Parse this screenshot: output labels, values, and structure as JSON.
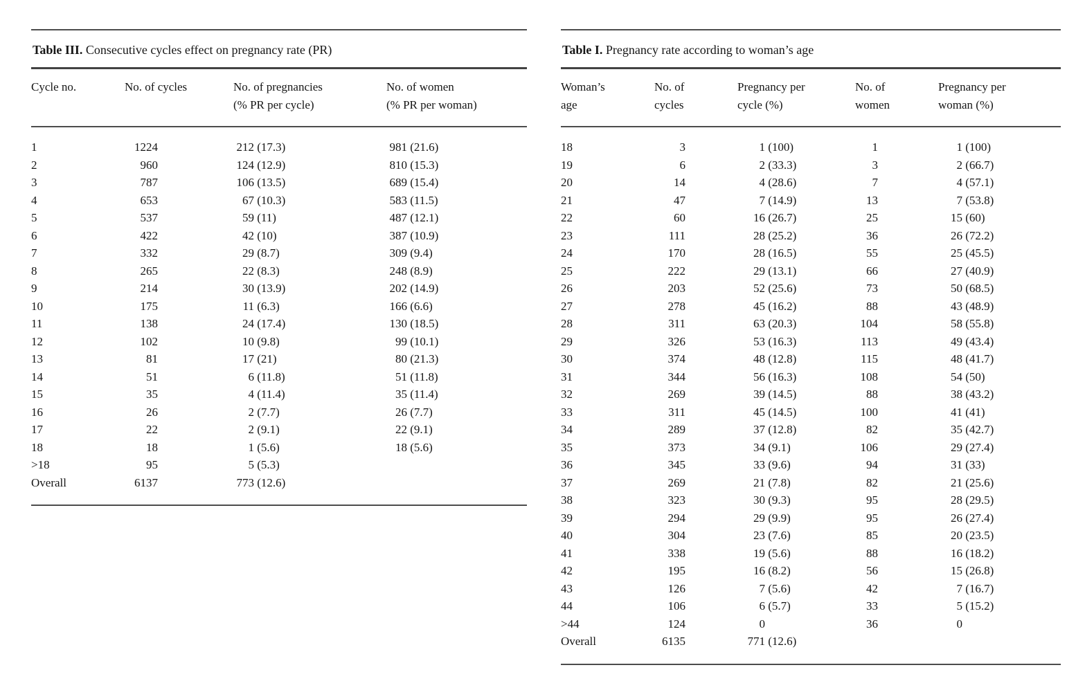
{
  "page": {
    "background": "#ffffff",
    "text_color": "#161616",
    "rule_color": "#4c4c4c"
  },
  "tables": [
    {
      "id": "table-iii",
      "title_label": "Table III.",
      "title_text": "Consecutive cycles effect on pregnancy rate (PR)",
      "columns": [
        {
          "lines": [
            "Cycle no."
          ]
        },
        {
          "lines": [
            "No. of cycles"
          ]
        },
        {
          "lines": [
            "No. of pregnancies",
            "(% PR per cycle)"
          ]
        },
        {
          "lines": [
            "No. of women",
            "(% PR per woman)"
          ]
        }
      ],
      "rows": [
        [
          "1",
          "1224",
          "212 (17.3)",
          "981 (21.6)"
        ],
        [
          "2",
          "960",
          "124 (12.9)",
          "810 (15.3)"
        ],
        [
          "3",
          "787",
          "106 (13.5)",
          "689 (15.4)"
        ],
        [
          "4",
          "653",
          "67 (10.3)",
          "583 (11.5)"
        ],
        [
          "5",
          "537",
          "59 (11)",
          "487 (12.1)"
        ],
        [
          "6",
          "422",
          "42 (10)",
          "387 (10.9)"
        ],
        [
          "7",
          "332",
          "29 (8.7)",
          "309 (9.4)"
        ],
        [
          "8",
          "265",
          "22 (8.3)",
          "248 (8.9)"
        ],
        [
          "9",
          "214",
          "30 (13.9)",
          "202 (14.9)"
        ],
        [
          "10",
          "175",
          "11 (6.3)",
          "166 (6.6)"
        ],
        [
          "11",
          "138",
          "24 (17.4)",
          "130 (18.5)"
        ],
        [
          "12",
          "102",
          "10 (9.8)",
          "99 (10.1)"
        ],
        [
          "13",
          "81",
          "17 (21)",
          "80 (21.3)"
        ],
        [
          "14",
          "51",
          "6 (11.8)",
          "51 (11.8)"
        ],
        [
          "15",
          "35",
          "4 (11.4)",
          "35 (11.4)"
        ],
        [
          "16",
          "26",
          "2 (7.7)",
          "26 (7.7)"
        ],
        [
          "17",
          "22",
          "2 (9.1)",
          "22 (9.1)"
        ],
        [
          "18",
          "18",
          "1 (5.6)",
          "18 (5.6)"
        ],
        [
          ">18",
          "95",
          "5 (5.3)",
          ""
        ],
        [
          "Overall",
          "6137",
          "773 (12.6)",
          ""
        ]
      ]
    },
    {
      "id": "table-i",
      "title_label": "Table I.",
      "title_text": "Pregnancy rate according to woman’s age",
      "columns": [
        {
          "lines": [
            "Woman’s",
            "age"
          ]
        },
        {
          "lines": [
            "No. of",
            "cycles"
          ]
        },
        {
          "lines": [
            "Pregnancy per",
            "cycle (%)"
          ]
        },
        {
          "lines": [
            "No. of",
            "women"
          ]
        },
        {
          "lines": [
            "Pregnancy per",
            "woman (%)"
          ]
        }
      ],
      "rows": [
        [
          "18",
          "3",
          "1 (100)",
          "1",
          "1 (100)"
        ],
        [
          "19",
          "6",
          "2 (33.3)",
          "3",
          "2 (66.7)"
        ],
        [
          "20",
          "14",
          "4 (28.6)",
          "7",
          "4 (57.1)"
        ],
        [
          "21",
          "47",
          "7 (14.9)",
          "13",
          "7 (53.8)"
        ],
        [
          "22",
          "60",
          "16 (26.7)",
          "25",
          "15 (60)"
        ],
        [
          "23",
          "111",
          "28 (25.2)",
          "36",
          "26 (72.2)"
        ],
        [
          "24",
          "170",
          "28 (16.5)",
          "55",
          "25 (45.5)"
        ],
        [
          "25",
          "222",
          "29 (13.1)",
          "66",
          "27 (40.9)"
        ],
        [
          "26",
          "203",
          "52 (25.6)",
          "73",
          "50 (68.5)"
        ],
        [
          "27",
          "278",
          "45 (16.2)",
          "88",
          "43 (48.9)"
        ],
        [
          "28",
          "311",
          "63 (20.3)",
          "104",
          "58 (55.8)"
        ],
        [
          "29",
          "326",
          "53 (16.3)",
          "113",
          "49 (43.4)"
        ],
        [
          "30",
          "374",
          "48 (12.8)",
          "115",
          "48 (41.7)"
        ],
        [
          "31",
          "344",
          "56 (16.3)",
          "108",
          "54 (50)"
        ],
        [
          "32",
          "269",
          "39 (14.5)",
          "88",
          "38 (43.2)"
        ],
        [
          "33",
          "311",
          "45 (14.5)",
          "100",
          "41 (41)"
        ],
        [
          "34",
          "289",
          "37 (12.8)",
          "82",
          "35 (42.7)"
        ],
        [
          "35",
          "373",
          "34 (9.1)",
          "106",
          "29 (27.4)"
        ],
        [
          "36",
          "345",
          "33 (9.6)",
          "94",
          "31 (33)"
        ],
        [
          "37",
          "269",
          "21 (7.8)",
          "82",
          "21 (25.6)"
        ],
        [
          "38",
          "323",
          "30 (9.3)",
          "95",
          "28 (29.5)"
        ],
        [
          "39",
          "294",
          "29 (9.9)",
          "95",
          "26 (27.4)"
        ],
        [
          "40",
          "304",
          "23 (7.6)",
          "85",
          "20 (23.5)"
        ],
        [
          "41",
          "338",
          "19 (5.6)",
          "88",
          "16 (18.2)"
        ],
        [
          "42",
          "195",
          "16 (8.2)",
          "56",
          "15 (26.8)"
        ],
        [
          "43",
          "126",
          "7 (5.6)",
          "42",
          "7 (16.7)"
        ],
        [
          "44",
          "106",
          "6 (5.7)",
          "33",
          "5 (15.2)"
        ],
        [
          ">44",
          "124",
          "0",
          "36",
          "0"
        ],
        [
          "Overall",
          "6135",
          "771 (12.6)",
          "",
          ""
        ]
      ]
    }
  ]
}
